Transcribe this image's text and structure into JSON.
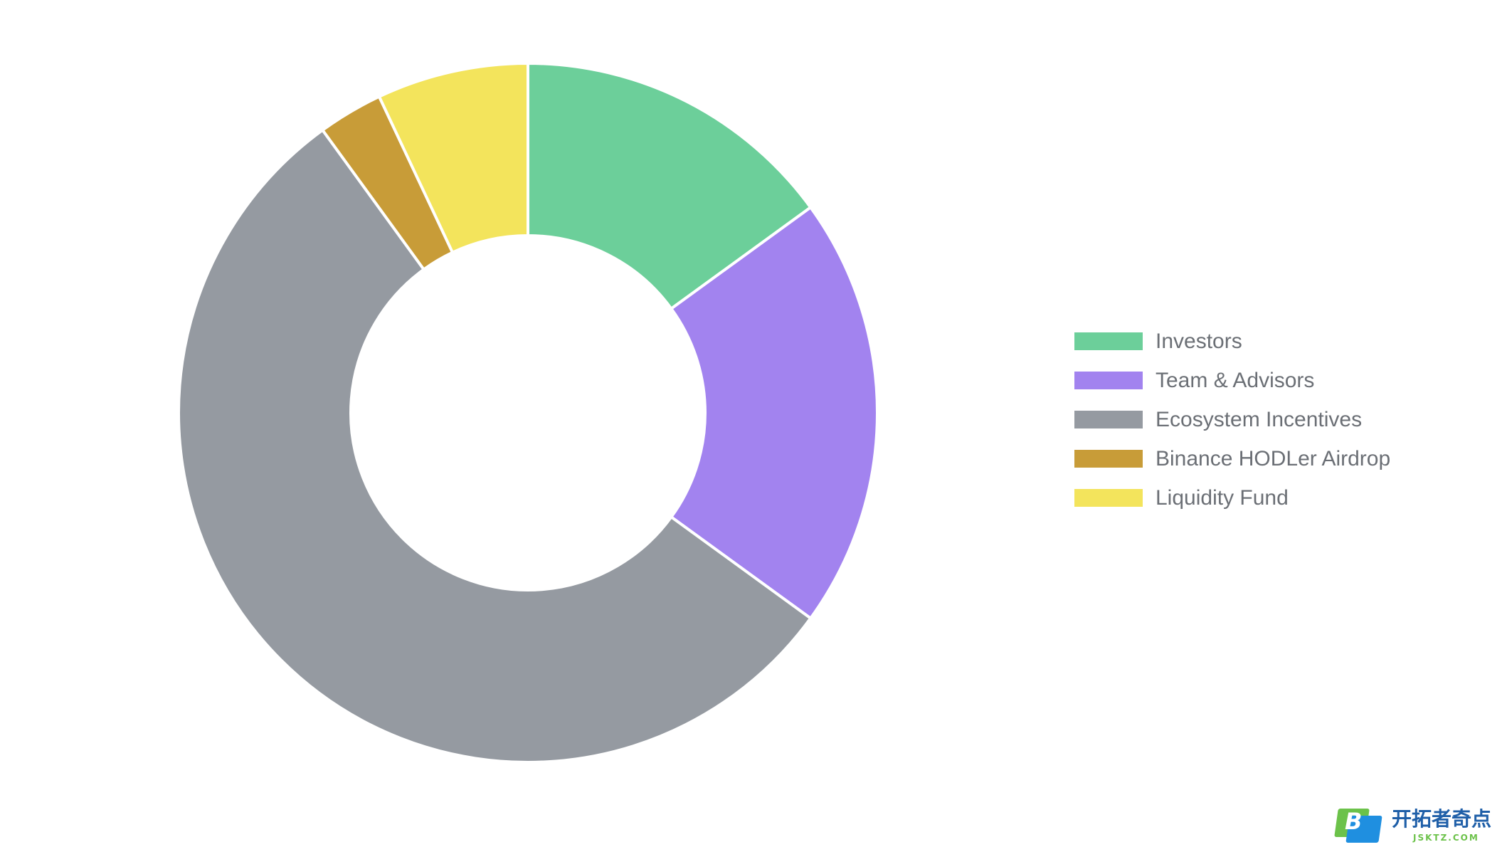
{
  "chart_data": {
    "type": "pie",
    "variant": "doughnut",
    "categories": [
      "Investors",
      "Team & Advisors",
      "Ecosystem Incentives",
      "Binance HODLer Airdrop",
      "Liquidity Fund"
    ],
    "values": [
      15,
      20,
      55,
      3,
      7
    ],
    "colors": [
      "#6ccf9a",
      "#a283ef",
      "#959aa1",
      "#c89c38",
      "#f3e45c"
    ],
    "title": "",
    "legend_position": "right"
  },
  "watermark": {
    "logo_letter": "B",
    "brand": "开拓者奇点",
    "url": "JSKTZ.COM"
  }
}
